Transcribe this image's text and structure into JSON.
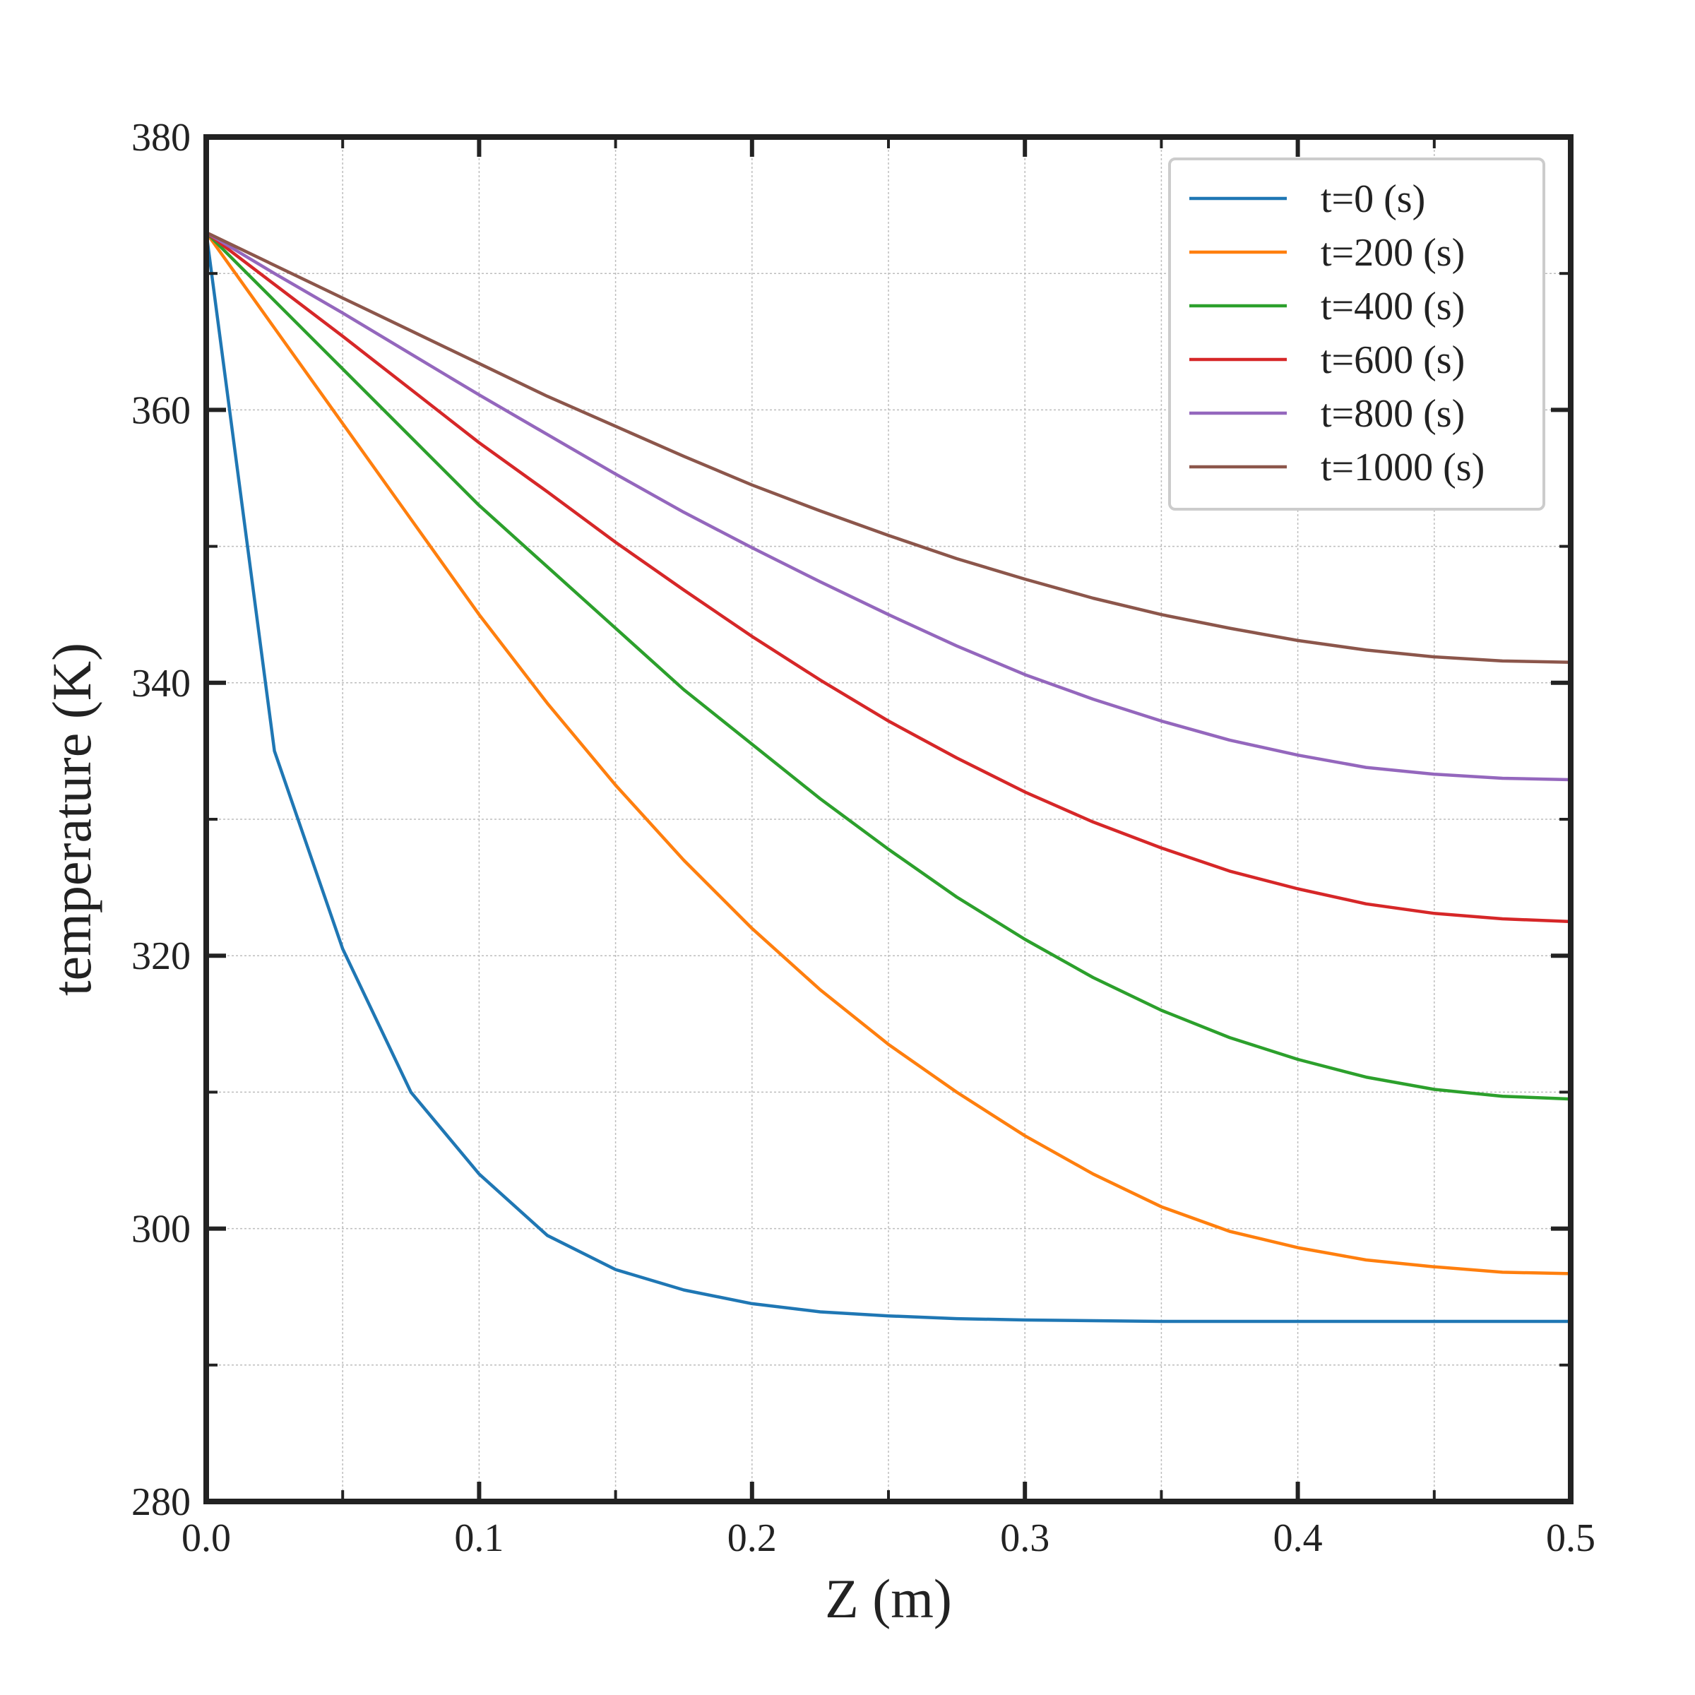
{
  "chart_data": {
    "type": "line",
    "title": "",
    "xlabel": "Z (m)",
    "ylabel": "temperature (K)",
    "xlim": [
      0.0,
      0.5
    ],
    "ylim": [
      280,
      380
    ],
    "xticks": [
      0.0,
      0.1,
      0.2,
      0.3,
      0.4,
      0.5
    ],
    "xtick_labels": [
      "0.0",
      "0.1",
      "0.2",
      "0.3",
      "0.4",
      "0.5"
    ],
    "yticks": [
      280,
      300,
      320,
      340,
      360,
      380
    ],
    "ytick_labels": [
      "280",
      "300",
      "320",
      "340",
      "360",
      "380"
    ],
    "grid": true,
    "legend_position": "top-right",
    "x": [
      0.0,
      0.025,
      0.05,
      0.075,
      0.1,
      0.125,
      0.15,
      0.175,
      0.2,
      0.225,
      0.25,
      0.275,
      0.3,
      0.325,
      0.35,
      0.375,
      0.4,
      0.425,
      0.45,
      0.475,
      0.5
    ],
    "series": [
      {
        "name": "t=0 (s)",
        "color": "#1f77b4",
        "values": [
          373.0,
          335.0,
          320.5,
          310.0,
          304.0,
          299.5,
          297.0,
          295.5,
          294.5,
          293.9,
          293.6,
          293.4,
          293.3,
          293.25,
          293.2,
          293.2,
          293.2,
          293.2,
          293.2,
          293.2,
          293.2
        ]
      },
      {
        "name": "t=200 (s)",
        "color": "#ff7f0e",
        "values": [
          373.0,
          366.0,
          359.0,
          352.0,
          345.0,
          338.5,
          332.5,
          327.0,
          322.0,
          317.5,
          313.5,
          310.0,
          306.8,
          304.0,
          301.6,
          299.8,
          298.6,
          297.7,
          297.2,
          296.8,
          296.7
        ]
      },
      {
        "name": "t=400 (s)",
        "color": "#2ca02c",
        "values": [
          373.0,
          368.0,
          363.0,
          358.0,
          353.0,
          348.5,
          344.0,
          339.5,
          335.5,
          331.5,
          327.8,
          324.3,
          321.2,
          318.4,
          316.0,
          314.0,
          312.4,
          311.1,
          310.2,
          309.7,
          309.5
        ]
      },
      {
        "name": "t=600 (s)",
        "color": "#d62728",
        "values": [
          373.0,
          369.2,
          365.4,
          361.5,
          357.6,
          354.0,
          350.3,
          346.8,
          343.4,
          340.2,
          337.2,
          334.5,
          332.0,
          329.8,
          327.9,
          326.2,
          324.9,
          323.8,
          323.1,
          322.7,
          322.5
        ]
      },
      {
        "name": "t=800 (s)",
        "color": "#9467bd",
        "values": [
          373.0,
          370.0,
          367.1,
          364.1,
          361.1,
          358.2,
          355.3,
          352.5,
          349.9,
          347.4,
          345.0,
          342.7,
          340.6,
          338.8,
          337.2,
          335.8,
          334.7,
          333.8,
          333.3,
          333.0,
          332.9
        ]
      },
      {
        "name": "t=1000 (s)",
        "color": "#8c564b",
        "values": [
          373.0,
          370.6,
          368.2,
          365.8,
          363.4,
          361.0,
          358.8,
          356.6,
          354.5,
          352.6,
          350.8,
          349.1,
          347.6,
          346.2,
          345.0,
          344.0,
          343.1,
          342.4,
          341.9,
          341.6,
          341.5
        ]
      }
    ]
  }
}
